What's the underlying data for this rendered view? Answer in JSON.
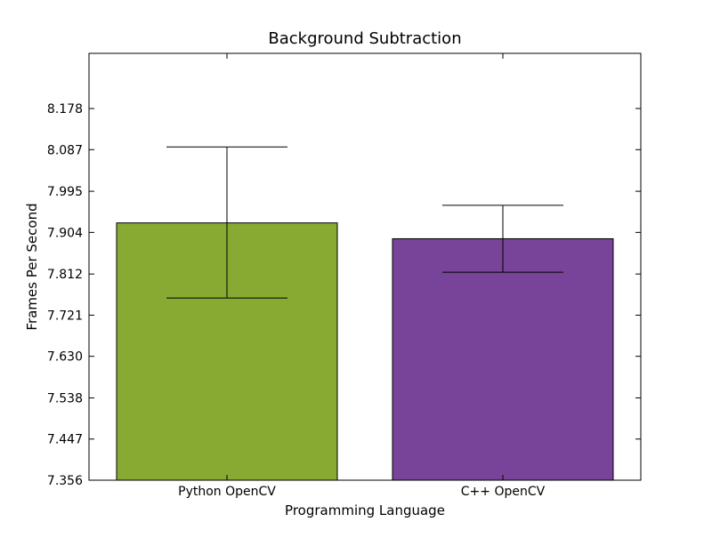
{
  "chart_data": {
    "type": "bar",
    "title": "Background Subtraction",
    "xlabel": "Programming Language",
    "ylabel": "Frames Per Second",
    "categories": [
      "Python OpenCV",
      "C++ OpenCV"
    ],
    "values": [
      7.925,
      7.89
    ],
    "error_low": [
      7.759,
      7.816
    ],
    "error_high": [
      8.093,
      7.964
    ],
    "bar_colors": [
      "#88aa33",
      "#774499"
    ],
    "ylim": [
      7.356,
      8.3
    ],
    "yticks": [
      "7.356",
      "7.447",
      "7.538",
      "7.630",
      "7.721",
      "7.812",
      "7.904",
      "7.995",
      "8.087",
      "8.178"
    ],
    "grid": false,
    "legend": "none"
  }
}
